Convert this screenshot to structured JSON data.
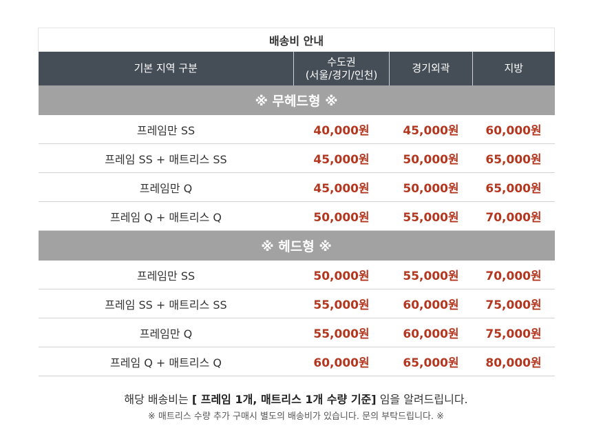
{
  "table": {
    "caption": "배송비 안내",
    "headers": {
      "region": "기본 지역 구분",
      "metro_line1": "수도권",
      "metro_line2": "(서울/경기/인천)",
      "outer_gyeonggi": "경기외곽",
      "provinces": "지방"
    },
    "sections": [
      {
        "title": "※ 무헤드형 ※",
        "rows": [
          {
            "name": "프레임만 SS",
            "metro": "40,000원",
            "outer": "45,000원",
            "province": "60,000원"
          },
          {
            "name": "프레임 SS + 매트리스 SS",
            "metro": "45,000원",
            "outer": "50,000원",
            "province": "65,000원"
          },
          {
            "name": "프레임만 Q",
            "metro": "45,000원",
            "outer": "50,000원",
            "province": "65,000원"
          },
          {
            "name": "프레임 Q + 매트리스 Q",
            "metro": "50,000원",
            "outer": "55,000원",
            "province": "70,000원"
          }
        ]
      },
      {
        "title": "※ 헤드형 ※",
        "rows": [
          {
            "name": "프레임만 SS",
            "metro": "50,000원",
            "outer": "55,000원",
            "province": "70,000원"
          },
          {
            "name": "프레임 SS + 매트리스 SS",
            "metro": "55,000원",
            "outer": "60,000원",
            "province": "75,000원"
          },
          {
            "name": "프레임만 Q",
            "metro": "55,000원",
            "outer": "60,000원",
            "province": "75,000원"
          },
          {
            "name": "프레임 Q + 매트리스 Q",
            "metro": "60,000원",
            "outer": "65,000원",
            "province": "80,000원"
          }
        ]
      }
    ]
  },
  "notes": {
    "main_prefix": "해당 배송비는 ",
    "main_bold": "[ 프레임 1개, 매트리스 1개 수량 기준]",
    "main_suffix": " 임을 알려드립니다.",
    "sub": "※ 매트리스 수량 추가 구매시 별도의 배송비가 있습니다. 문의 부탁드립니다. ※"
  }
}
